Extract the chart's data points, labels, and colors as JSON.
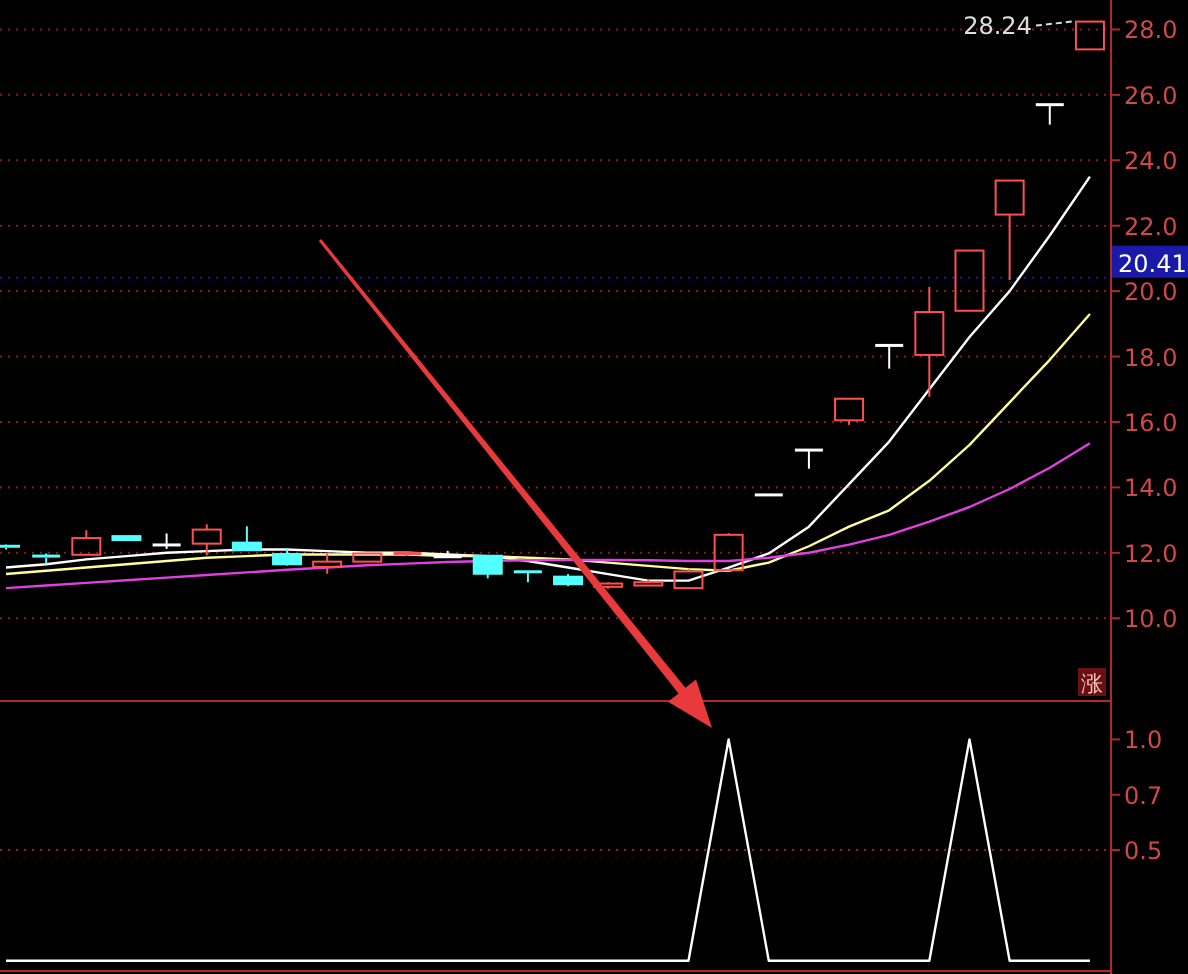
{
  "chart_data": [
    {
      "type": "candlestick",
      "categories": [
        null,
        null,
        null,
        null,
        null,
        null,
        null,
        null,
        null,
        null,
        null,
        null,
        null,
        null,
        null,
        null,
        null,
        null,
        null,
        null,
        null,
        null,
        null,
        null,
        null,
        null,
        null,
        null
      ],
      "ohlc": [
        [
          12.2,
          12.25,
          12.1,
          12.15
        ],
        [
          11.9,
          11.98,
          11.67,
          11.85
        ],
        [
          11.94,
          12.69,
          11.94,
          12.45
        ],
        [
          12.51,
          12.51,
          12.39,
          12.39
        ],
        [
          12.24,
          12.59,
          12.12,
          12.24
        ],
        [
          12.28,
          12.87,
          11.92,
          12.71
        ],
        [
          12.31,
          12.81,
          12.08,
          12.08
        ],
        [
          11.96,
          12.14,
          11.61,
          11.65
        ],
        [
          11.57,
          11.98,
          11.36,
          11.73
        ],
        [
          11.73,
          11.98,
          11.73,
          11.98
        ],
        [
          11.95,
          12.0,
          11.9,
          11.98
        ],
        [
          11.88,
          12.06,
          11.88,
          11.88
        ],
        [
          11.91,
          11.91,
          11.22,
          11.36
        ],
        [
          11.42,
          11.42,
          11.1,
          11.39
        ],
        [
          11.27,
          11.35,
          10.98,
          11.04
        ],
        [
          10.96,
          11.1,
          10.9,
          11.06
        ],
        [
          11.0,
          11.2,
          11.0,
          11.1
        ],
        [
          10.92,
          11.5,
          10.92,
          11.43
        ],
        [
          11.47,
          12.6,
          11.47,
          12.55
        ],
        [
          13.77,
          13.77,
          13.77,
          13.77
        ],
        [
          15.14,
          15.14,
          14.57,
          15.14
        ],
        [
          16.05,
          16.71,
          15.91,
          16.71
        ],
        [
          18.34,
          18.34,
          17.63,
          18.34
        ],
        [
          18.05,
          20.13,
          16.77,
          19.36
        ],
        [
          19.4,
          21.24,
          19.4,
          21.24
        ],
        [
          22.34,
          23.38,
          20.34,
          23.38
        ],
        [
          25.7,
          25.7,
          25.09,
          25.7
        ],
        [
          27.39,
          28.24,
          27.39,
          28.24
        ]
      ],
      "colors": [
        "#54ffff",
        "#54ffff",
        "#ff5050",
        "#54ffff",
        "#ffffff",
        "#ff5050",
        "#54ffff",
        "#54ffff",
        "#ff5050",
        "#ff5050",
        "#ff5050",
        "#ffffff",
        "#54ffff",
        "#54ffff",
        "#54ffff",
        "#ff5050",
        "#ff5050",
        "#ff5050",
        "#ff5050",
        "#ffffff",
        "#ffffff",
        "#ff5050",
        "#ffffff",
        "#ff5050",
        "#ff5050",
        "#ff5050",
        "#ffffff",
        "#ff5050"
      ],
      "series": [
        {
          "type": "line",
          "color": "#ffffff",
          "values": [
            11.55,
            11.65,
            11.8,
            11.9,
            12.0,
            12.05,
            12.1,
            12.1,
            12.05,
            12.0,
            12.0,
            11.95,
            11.9,
            11.75,
            11.55,
            11.35,
            11.15,
            11.15,
            11.55,
            11.98,
            12.8,
            14.1,
            15.4,
            17.0,
            18.6,
            20.0,
            21.7,
            23.5
          ]
        },
        {
          "type": "line",
          "color": "#ffff99",
          "values": [
            11.35,
            11.45,
            11.55,
            11.65,
            11.75,
            11.85,
            11.9,
            11.95,
            11.95,
            11.95,
            11.95,
            11.9,
            11.9,
            11.85,
            11.8,
            11.7,
            11.6,
            11.5,
            11.45,
            11.7,
            12.2,
            12.8,
            13.3,
            14.2,
            15.3,
            16.6,
            17.9,
            19.3
          ]
        },
        {
          "type": "line",
          "color": "#e040e0",
          "values": [
            10.92,
            11.0,
            11.08,
            11.16,
            11.24,
            11.32,
            11.4,
            11.48,
            11.55,
            11.62,
            11.67,
            11.72,
            11.75,
            11.77,
            11.78,
            11.78,
            11.77,
            11.75,
            11.75,
            11.85,
            12.0,
            12.25,
            12.55,
            12.95,
            13.4,
            13.95,
            14.6,
            15.35
          ]
        }
      ],
      "ylim": [
        7.5,
        28.9
      ],
      "yticks": [
        {
          "value": 10,
          "label": "10.0"
        },
        {
          "value": 12,
          "label": "12.0"
        },
        {
          "value": 14,
          "label": "14.0"
        },
        {
          "value": 16,
          "label": "16.0"
        },
        {
          "value": 18,
          "label": "18.0"
        },
        {
          "value": 20,
          "label": "20.0"
        },
        {
          "value": 22,
          "label": "22.0"
        },
        {
          "value": 24,
          "label": "24.0"
        },
        {
          "value": 26,
          "label": "26.0"
        },
        {
          "value": 28,
          "label": "28.0"
        }
      ],
      "grid": "y",
      "tick_labels": "y",
      "ref_lines": [
        {
          "axis": "y",
          "value": 20.41,
          "label": "20.41",
          "color": "#1a1aa8"
        }
      ],
      "annotations": [
        "28.24",
        "涨"
      ]
    },
    {
      "type": "line",
      "categories": [
        null,
        null,
        null,
        null,
        null,
        null,
        null,
        null,
        null,
        null,
        null,
        null,
        null,
        null,
        null,
        null,
        null,
        null,
        null,
        null,
        null,
        null,
        null,
        null,
        null,
        null,
        null,
        null
      ],
      "series": [
        {
          "color": "#ffffff",
          "values": [
            0,
            0,
            0,
            0,
            0,
            0,
            0,
            0,
            0,
            0,
            0,
            0,
            0,
            0,
            0,
            0,
            0,
            0,
            1,
            0,
            0,
            0,
            0,
            0,
            1,
            0,
            0,
            0
          ]
        }
      ],
      "ylim": [
        -0.06,
        1.16
      ],
      "yticks": [
        {
          "value": 0.5,
          "label": "0.5"
        },
        {
          "value": 0.75,
          "label": "0.7"
        },
        {
          "value": 1,
          "label": "1.0"
        }
      ],
      "tick_labels": "y",
      "ref_lines": [
        {
          "axis": "y",
          "value": 0.5,
          "line_style": "dotted",
          "color": "#a02020"
        }
      ]
    }
  ]
}
